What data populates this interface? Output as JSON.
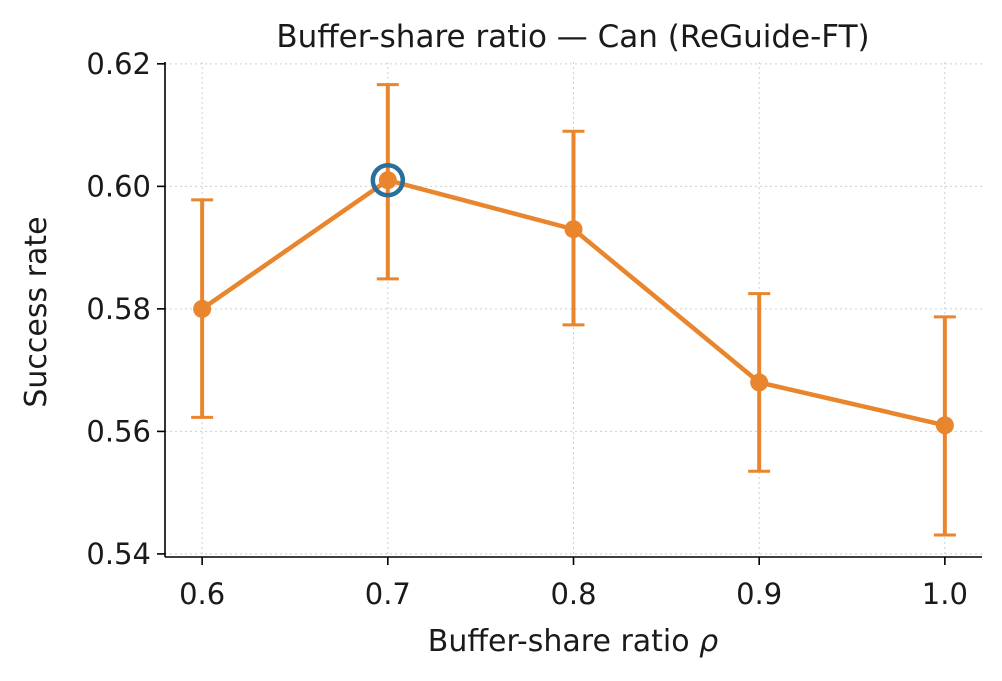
{
  "chart_data": {
    "type": "line",
    "title": "Buffer-share ratio — Can (ReGuide-FT)",
    "xlabel": "Buffer-share ratio",
    "xlabel_symbol": "ρ",
    "ylabel": "Success rate",
    "x": [
      0.6,
      0.7,
      0.8,
      0.9,
      1.0
    ],
    "x_tick_labels": [
      "0.6",
      "0.7",
      "0.8",
      "0.9",
      "1.0"
    ],
    "y_tick_values": [
      0.54,
      0.56,
      0.58,
      0.6,
      0.62
    ],
    "y_tick_labels": [
      "0.54",
      "0.56",
      "0.58",
      "0.60",
      "0.62"
    ],
    "xlim": [
      0.58,
      1.02
    ],
    "ylim": [
      0.5395,
      0.6203
    ],
    "grid": true,
    "series": [
      {
        "values": [
          0.58,
          0.601,
          0.593,
          0.568,
          0.561
        ],
        "error_low": [
          0.5623,
          0.5849,
          0.5774,
          0.5535,
          0.5431
        ],
        "error_high": [
          0.5978,
          0.6166,
          0.609,
          0.5825,
          0.5787
        ],
        "color": "#e8852d"
      }
    ],
    "highlight": {
      "x": 0.7,
      "y": 0.601,
      "color": "#2a6f9c"
    }
  }
}
